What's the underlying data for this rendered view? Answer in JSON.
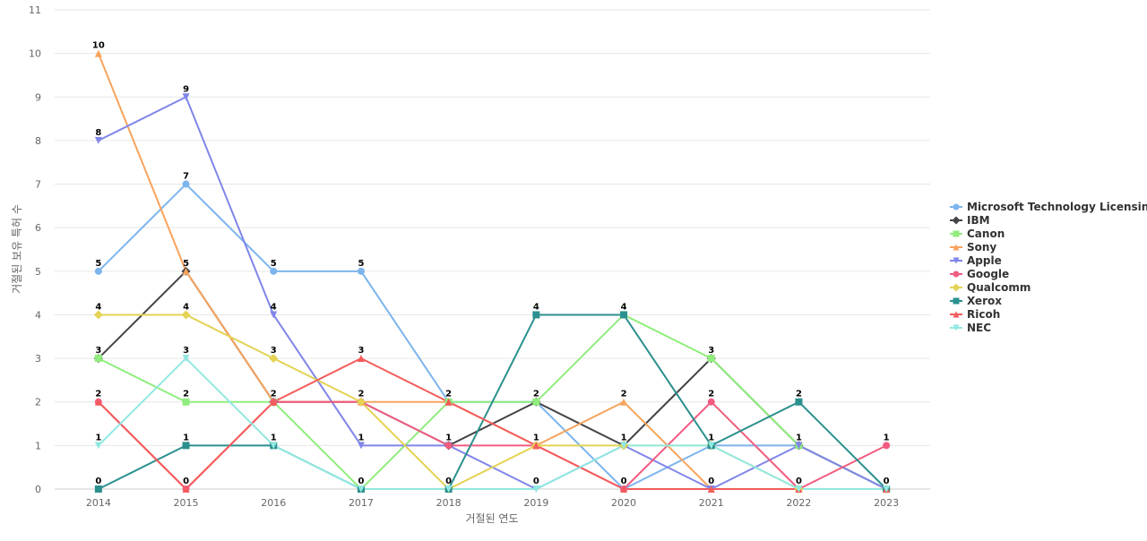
{
  "chart_data": {
    "type": "line",
    "title": "",
    "xlabel": "거절된 연도",
    "ylabel": "거절된 보유 특허 수",
    "categories": [
      "2014",
      "2015",
      "2016",
      "2017",
      "2018",
      "2019",
      "2020",
      "2021",
      "2022",
      "2023"
    ],
    "ylim": [
      0,
      11
    ],
    "yticks": [
      0,
      1,
      2,
      3,
      4,
      5,
      6,
      7,
      8,
      9,
      10,
      11
    ],
    "grid": true,
    "legend": "right",
    "series": [
      {
        "name": "Microsoft Technology Licensing",
        "color": "#7cb5ec",
        "marker": "circle",
        "values": [
          5,
          7,
          5,
          5,
          2,
          2,
          0,
          1,
          1,
          0
        ]
      },
      {
        "name": "IBM",
        "color": "#434348",
        "marker": "diamond",
        "values": [
          3,
          5,
          2,
          2,
          1,
          2,
          1,
          3,
          1,
          0
        ]
      },
      {
        "name": "Canon",
        "color": "#90ed7d",
        "marker": "square",
        "values": [
          3,
          2,
          2,
          0,
          2,
          2,
          4,
          3,
          1,
          0
        ]
      },
      {
        "name": "Sony",
        "color": "#f7a35c",
        "marker": "triangle",
        "values": [
          10,
          5,
          2,
          2,
          2,
          1,
          2,
          0,
          0,
          0
        ]
      },
      {
        "name": "Apple",
        "color": "#8085e9",
        "marker": "triangle-down",
        "values": [
          8,
          9,
          4,
          1,
          1,
          0,
          1,
          0,
          1,
          0
        ]
      },
      {
        "name": "Google",
        "color": "#f15c80",
        "marker": "circle",
        "values": [
          2,
          0,
          2,
          2,
          1,
          1,
          0,
          2,
          0,
          1
        ]
      },
      {
        "name": "Qualcomm",
        "color": "#e4d354",
        "marker": "diamond",
        "values": [
          4,
          4,
          3,
          2,
          0,
          1,
          1,
          1,
          0,
          0
        ]
      },
      {
        "name": "Xerox",
        "color": "#2b908f",
        "marker": "square",
        "values": [
          0,
          1,
          1,
          0,
          0,
          4,
          4,
          1,
          2,
          0
        ]
      },
      {
        "name": "Ricoh",
        "color": "#f45b5b",
        "marker": "triangle",
        "values": [
          2,
          0,
          2,
          3,
          2,
          1,
          0,
          0,
          0,
          0
        ]
      },
      {
        "name": "NEC",
        "color": "#91e8e1",
        "marker": "triangle-down",
        "values": [
          1,
          3,
          1,
          0,
          0,
          0,
          1,
          1,
          0,
          0
        ]
      }
    ],
    "data_labels": [
      {
        "x": "2014",
        "value": 10
      },
      {
        "x": "2014",
        "value": 8
      },
      {
        "x": "2014",
        "value": 5
      },
      {
        "x": "2014",
        "value": 4
      },
      {
        "x": "2014",
        "value": 3
      },
      {
        "x": "2014",
        "value": 2
      },
      {
        "x": "2014",
        "value": 1
      },
      {
        "x": "2014",
        "value": 0
      },
      {
        "x": "2015",
        "value": 9
      },
      {
        "x": "2015",
        "value": 7
      },
      {
        "x": "2015",
        "value": 5
      },
      {
        "x": "2015",
        "value": 4
      },
      {
        "x": "2015",
        "value": 3
      },
      {
        "x": "2015",
        "value": 2
      },
      {
        "x": "2015",
        "value": 1
      },
      {
        "x": "2015",
        "value": 0
      },
      {
        "x": "2016",
        "value": 5
      },
      {
        "x": "2016",
        "value": 4
      },
      {
        "x": "2016",
        "value": 3
      },
      {
        "x": "2016",
        "value": 2
      },
      {
        "x": "2016",
        "value": 1
      },
      {
        "x": "2017",
        "value": 5
      },
      {
        "x": "2017",
        "value": 3
      },
      {
        "x": "2017",
        "value": 2
      },
      {
        "x": "2017",
        "value": 1
      },
      {
        "x": "2017",
        "value": 0
      },
      {
        "x": "2018",
        "value": 2
      },
      {
        "x": "2018",
        "value": 1
      },
      {
        "x": "2018",
        "value": 0
      },
      {
        "x": "2019",
        "value": 4
      },
      {
        "x": "2019",
        "value": 2
      },
      {
        "x": "2019",
        "value": 1
      },
      {
        "x": "2019",
        "value": 0
      },
      {
        "x": "2020",
        "value": 4
      },
      {
        "x": "2020",
        "value": 2
      },
      {
        "x": "2020",
        "value": 1
      },
      {
        "x": "2020",
        "value": 0
      },
      {
        "x": "2021",
        "value": 3
      },
      {
        "x": "2021",
        "value": 2
      },
      {
        "x": "2021",
        "value": 1
      },
      {
        "x": "2021",
        "value": 0
      },
      {
        "x": "2022",
        "value": 2
      },
      {
        "x": "2022",
        "value": 1
      },
      {
        "x": "2022",
        "value": 0
      },
      {
        "x": "2023",
        "value": 1
      },
      {
        "x": "2023",
        "value": 0
      }
    ]
  }
}
